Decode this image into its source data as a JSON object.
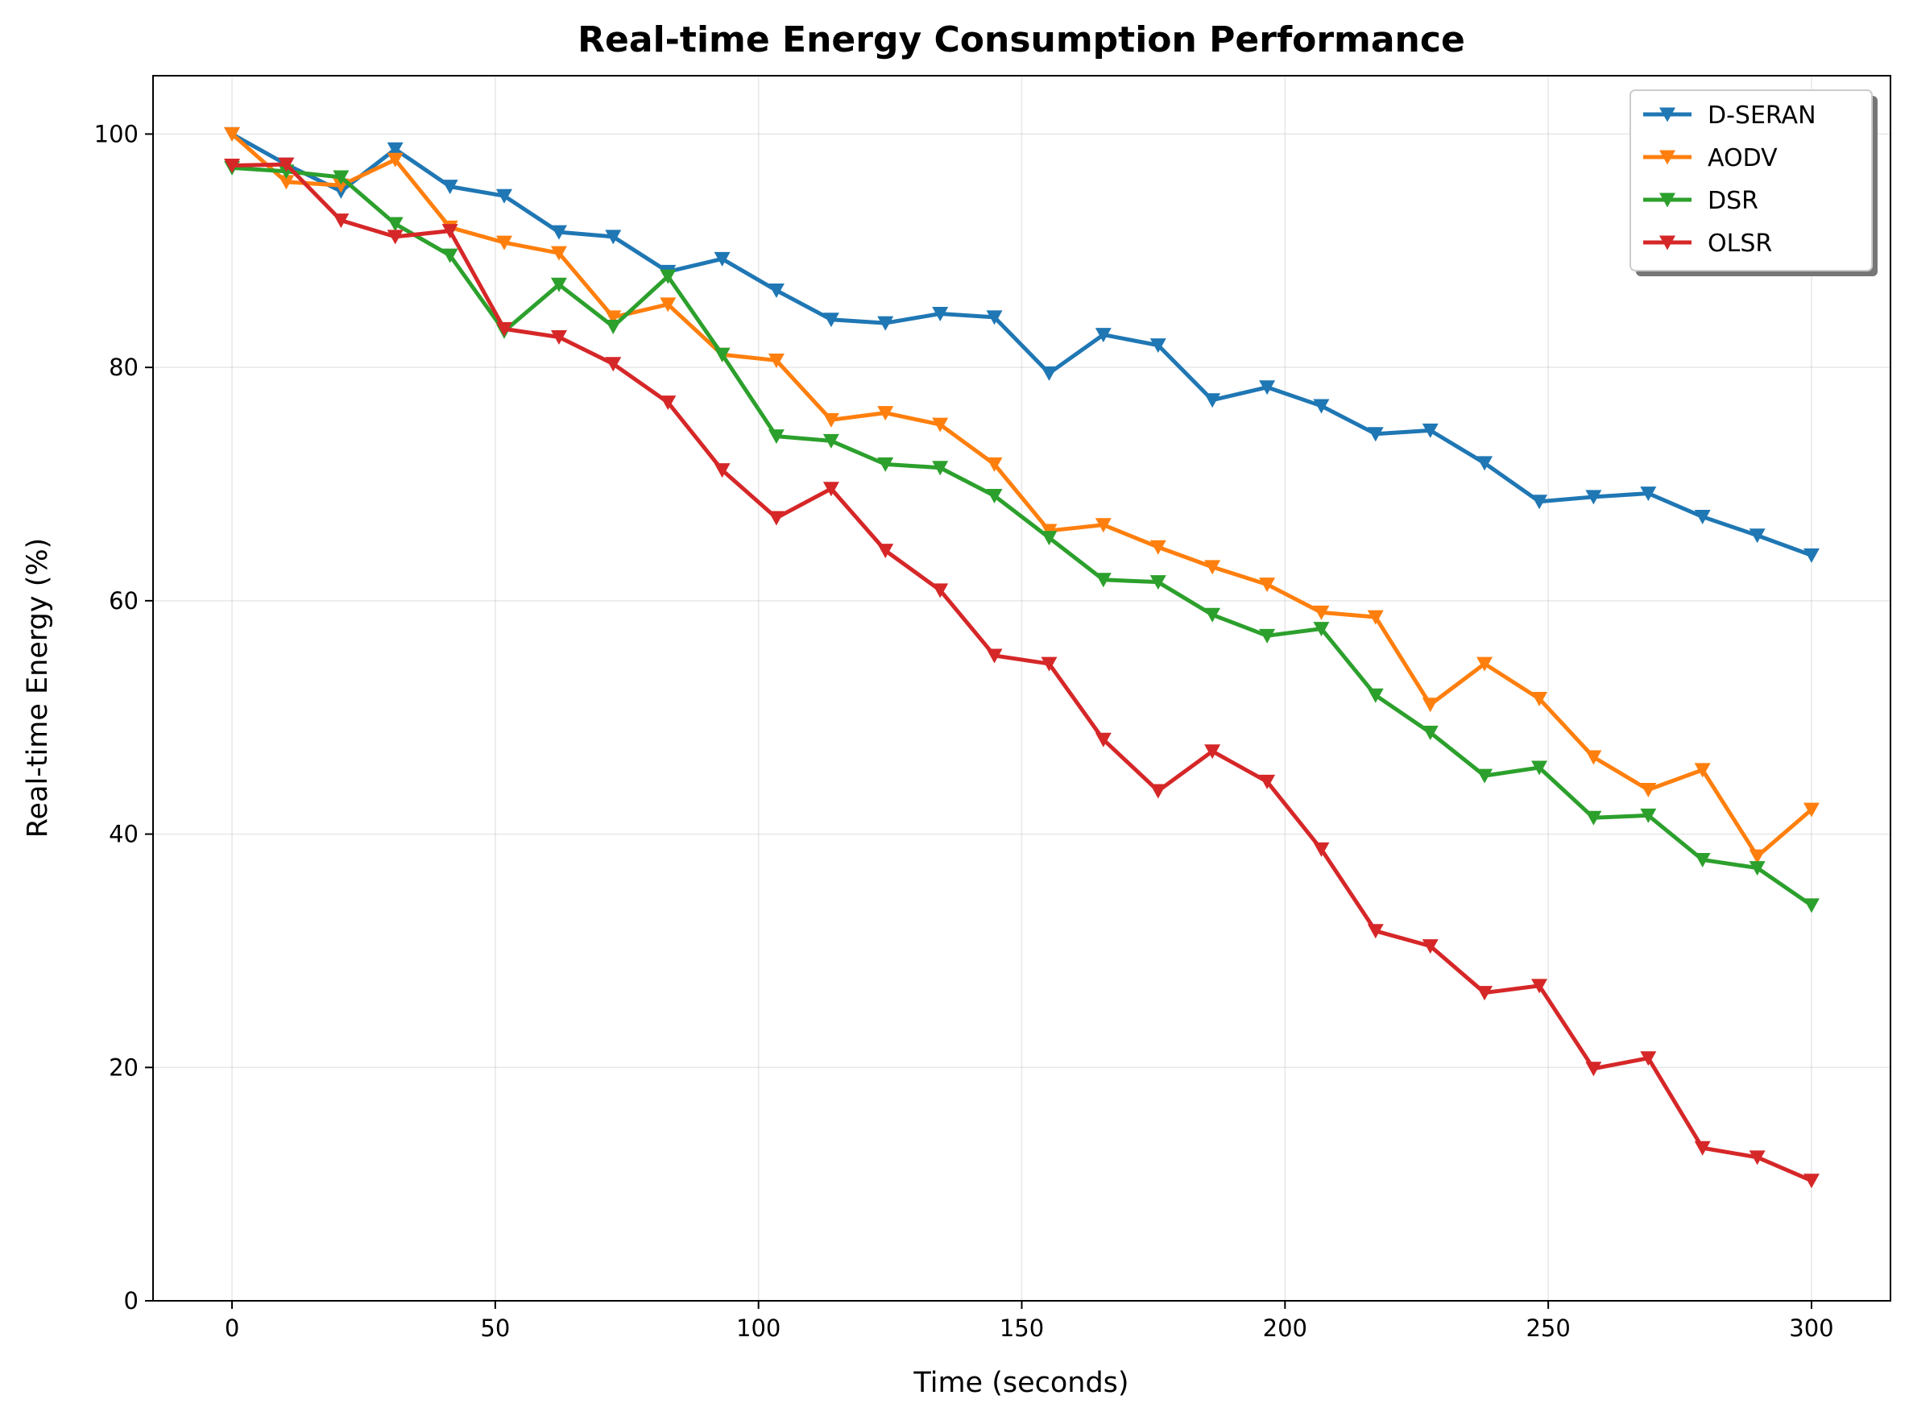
{
  "chart_data": {
    "type": "line",
    "title": "Real-time Energy Consumption Performance",
    "xlabel": "Time (seconds)",
    "ylabel": "Real-time Energy (%)",
    "xlim": [
      -15,
      315
    ],
    "ylim": [
      0,
      105
    ],
    "xticks": [
      0,
      50,
      100,
      150,
      200,
      250,
      300
    ],
    "yticks": [
      0,
      20,
      40,
      60,
      80,
      100
    ],
    "grid": true,
    "legend_position": "top-right",
    "marker": "triangle-down",
    "x": [
      0,
      10.3,
      20.7,
      31,
      41.4,
      51.7,
      62.1,
      72.4,
      82.8,
      93.1,
      103.4,
      113.8,
      124.1,
      134.5,
      144.8,
      155.2,
      165.5,
      175.9,
      186.2,
      196.6,
      206.9,
      217.2,
      227.6,
      237.9,
      248.3,
      258.6,
      269,
      279.3,
      289.7,
      300
    ],
    "series": [
      {
        "name": "D-SERAN",
        "color": "#1f77b4",
        "values": [
          100,
          97.4,
          95.1,
          98.7,
          95.5,
          94.7,
          91.6,
          91.2,
          88.2,
          89.3,
          86.6,
          84.1,
          83.8,
          84.6,
          84.3,
          79.5,
          82.8,
          81.9,
          77.2,
          78.3,
          76.7,
          74.3,
          74.6,
          71.8,
          68.5,
          68.9,
          69.2,
          67.2,
          65.6,
          63.9
        ]
      },
      {
        "name": "AODV",
        "color": "#ff7f0e",
        "values": [
          100,
          95.9,
          95.6,
          97.8,
          92,
          90.7,
          89.8,
          84.3,
          85.4,
          81.1,
          80.6,
          75.5,
          76.1,
          75.1,
          71.7,
          66,
          66.5,
          64.6,
          62.9,
          61.4,
          59,
          58.6,
          51.1,
          54.6,
          51.6,
          46.6,
          43.8,
          45.5,
          38.1,
          42.1
        ]
      },
      {
        "name": "DSR",
        "color": "#2ca02c",
        "values": [
          97.1,
          96.8,
          96.3,
          92.3,
          89.6,
          83.1,
          87.1,
          83.5,
          87.8,
          81.1,
          74.1,
          73.7,
          71.7,
          71.4,
          69,
          65.4,
          61.8,
          61.6,
          58.8,
          57,
          57.6,
          51.9,
          48.7,
          45,
          45.7,
          41.4,
          41.6,
          37.8,
          37.1,
          33.9
        ]
      },
      {
        "name": "OLSR",
        "color": "#d62728",
        "values": [
          97.3,
          97.4,
          92.6,
          91.2,
          91.7,
          83.3,
          82.6,
          80.3,
          77,
          71.2,
          67.1,
          69.6,
          64.3,
          60.9,
          55.3,
          54.6,
          48.1,
          43.7,
          47.1,
          44.5,
          38.7,
          31.7,
          30.4,
          26.4,
          27,
          19.9,
          20.8,
          13.1,
          12.3,
          10.3
        ]
      }
    ]
  }
}
